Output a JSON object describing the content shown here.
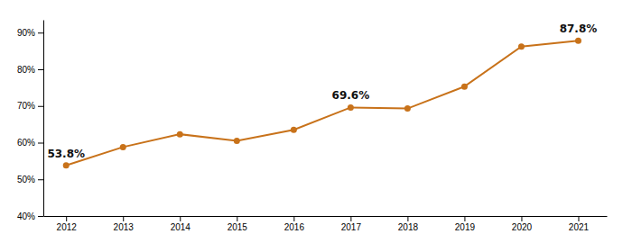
{
  "chart_data": {
    "type": "line",
    "x": [
      2012,
      2013,
      2014,
      2015,
      2016,
      2017,
      2018,
      2019,
      2020,
      2021
    ],
    "values": [
      0.538,
      0.588,
      0.623,
      0.605,
      0.635,
      0.696,
      0.693,
      0.753,
      0.862,
      0.878
    ],
    "color": "#C8721A",
    "marker": "circle",
    "xlim": [
      2011.6,
      2021.5
    ],
    "xticks": [
      2012,
      2013,
      2014,
      2015,
      2016,
      2017,
      2018,
      2019,
      2020,
      2021
    ],
    "ylim": [
      0.4,
      0.935
    ],
    "yticks": [
      {
        "value": 0.4,
        "label": "40%"
      },
      {
        "value": 0.5,
        "label": "50%"
      },
      {
        "value": 0.6,
        "label": "60%"
      },
      {
        "value": 0.7,
        "label": "70%"
      },
      {
        "value": 0.8,
        "label": "80%"
      },
      {
        "value": 0.9,
        "label": "90%"
      }
    ],
    "annotations": [
      {
        "text": "53.8%",
        "x": 2012,
        "y": 0.538
      },
      {
        "text": "69.6%",
        "x": 2017,
        "y": 0.696
      },
      {
        "text": "87.8%",
        "x": 2021,
        "y": 0.878
      }
    ],
    "grid": false
  }
}
